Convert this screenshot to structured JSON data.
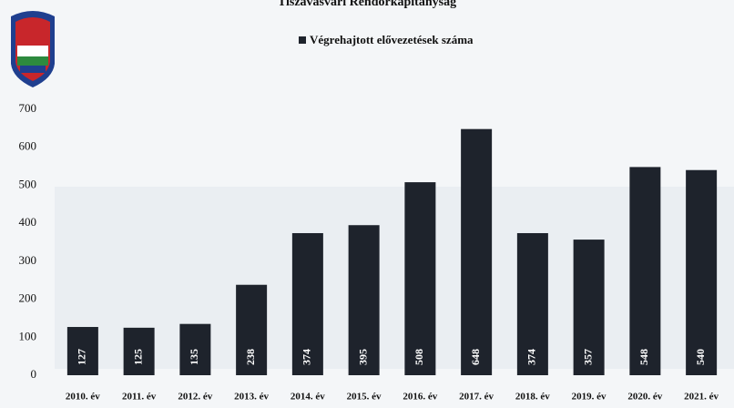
{
  "chart_data": {
    "type": "bar",
    "title": "Tiszavasvári Rendőrkapitányság",
    "categories": [
      "2010. év",
      "2011. év",
      "2012. év",
      "2013. év",
      "2014. év",
      "2015. év",
      "2016. év",
      "2017. év",
      "2018. év",
      "2019. év",
      "2020. év",
      "2021. év"
    ],
    "series": [
      {
        "name": "Végrehajtott elővezetések száma",
        "color": "#1e232c",
        "values": [
          127,
          125,
          135,
          238,
          374,
          395,
          508,
          648,
          374,
          357,
          548,
          540
        ]
      }
    ],
    "ylim": [
      0,
      700
    ],
    "yticks": [
      0,
      100,
      200,
      300,
      400,
      500,
      600,
      700
    ],
    "grid": false
  }
}
